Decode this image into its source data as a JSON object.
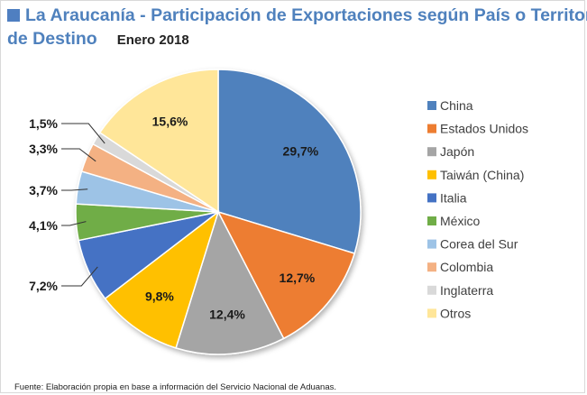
{
  "title": {
    "line1": "La Araucanía - Participación de Exportaciones según País o Territorio",
    "line2": "de Destino",
    "subtitle": "Enero 2018"
  },
  "source_note": "Fuente: Elaboración propia en base a información del Servicio Nacional de Aduanas.",
  "chart_data": {
    "type": "pie",
    "title": "La Araucanía - Participación de Exportaciones según País o Territorio de Destino",
    "subtitle": "Enero 2018",
    "categories": [
      "China",
      "Estados Unidos",
      "Japón",
      "Taiwán (China)",
      "Italia",
      "México",
      "Corea del Sur",
      "Colombia",
      "Inglaterra",
      "Otros"
    ],
    "values": [
      29.7,
      12.7,
      12.4,
      9.8,
      7.2,
      4.1,
      3.7,
      3.3,
      1.5,
      15.6
    ],
    "labels": [
      "29,7%",
      "12,7%",
      "12,4%",
      "9,8%",
      "7,2%",
      "4,1%",
      "3,7%",
      "3,3%",
      "1,5%",
      "15,6%"
    ],
    "colors": [
      "#4f81bd",
      "#ed7d31",
      "#a5a5a5",
      "#ffc000",
      "#4472c4",
      "#70ad47",
      "#9dc3e6",
      "#f4b183",
      "#d9d9d9",
      "#ffe699"
    ],
    "legend_position": "right"
  }
}
